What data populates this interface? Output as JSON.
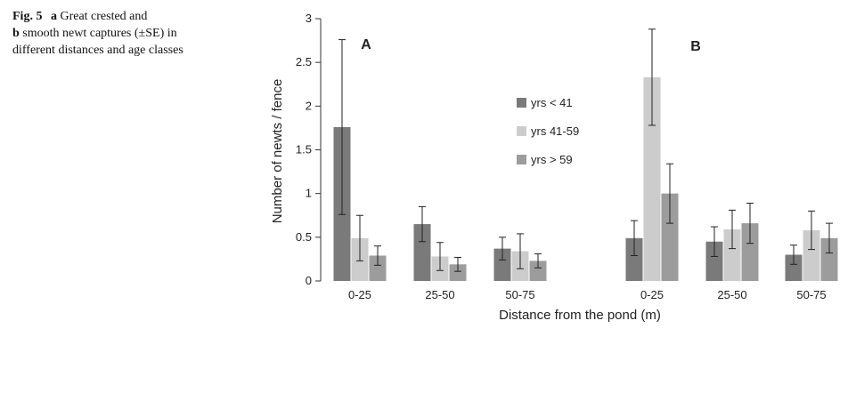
{
  "caption": {
    "fig_label": "Fig. 5",
    "part_a_letter": "a",
    "part_a_text": "Great crested and",
    "part_b_letter": "b",
    "part_b_text": "smooth newt captures (±SE) in different distances and age classes"
  },
  "chart_data": {
    "type": "bar",
    "ylabel": "Number of newts / fence",
    "xlabel": "Distance from the pond (m)",
    "ylim": [
      0,
      3
    ],
    "yticks": [
      0,
      0.5,
      1,
      1.5,
      2,
      2.5,
      3
    ],
    "ytick_labels": [
      "0",
      "0.5",
      "1",
      "1.5",
      "2",
      "2.5",
      "3"
    ],
    "grid": false,
    "legend_placement": "center-right of panel A",
    "legend": [
      {
        "label": "yrs < 41",
        "color": "#7a7a7a"
      },
      {
        "label": "yrs 41-59",
        "color": "#cccccc"
      },
      {
        "label": "yrs > 59",
        "color": "#9c9c9c"
      }
    ],
    "panels": [
      {
        "label": "A",
        "categories": [
          "0-25",
          "25-50",
          "50-75"
        ],
        "series": [
          {
            "name": "yrs < 41",
            "values": [
              1.76,
              0.65,
              0.37
            ],
            "se": [
              1.0,
              0.2,
              0.13
            ]
          },
          {
            "name": "yrs 41-59",
            "values": [
              0.49,
              0.28,
              0.34
            ],
            "se": [
              0.26,
              0.16,
              0.2
            ]
          },
          {
            "name": "yrs > 59",
            "values": [
              0.29,
              0.19,
              0.23
            ],
            "se": [
              0.11,
              0.08,
              0.08
            ]
          }
        ]
      },
      {
        "label": "B",
        "categories": [
          "0-25",
          "25-50",
          "50-75"
        ],
        "series": [
          {
            "name": "yrs < 41",
            "values": [
              0.49,
              0.45,
              0.3
            ],
            "se": [
              0.2,
              0.17,
              0.11
            ]
          },
          {
            "name": "yrs 41-59",
            "values": [
              2.33,
              0.59,
              0.58
            ],
            "se": [
              0.55,
              0.22,
              0.22
            ]
          },
          {
            "name": "yrs > 59",
            "values": [
              1.0,
              0.66,
              0.49
            ],
            "se": [
              0.34,
              0.23,
              0.17
            ]
          }
        ]
      }
    ]
  }
}
